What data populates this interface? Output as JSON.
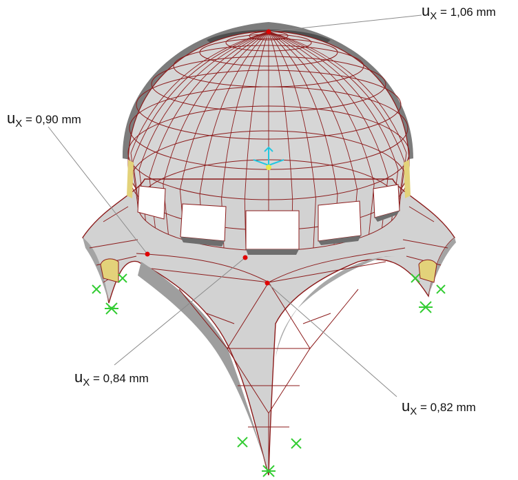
{
  "annotations": [
    {
      "id": "top",
      "symbol": "u",
      "subscript": "X",
      "value_text": " = 1,06 mm"
    },
    {
      "id": "left-rib",
      "symbol": "u",
      "subscript": "X",
      "value_text": " = 0,90 mm"
    },
    {
      "id": "center-bottom",
      "symbol": "u",
      "subscript": "X",
      "value_text": " = 0,84 mm"
    },
    {
      "id": "right-lower",
      "symbol": "u",
      "subscript": "X",
      "value_text": " = 0,82 mm"
    }
  ],
  "colors": {
    "mesh_line": "#8b1a1a",
    "shell_fill": "#d6d6d6",
    "shell_shadow": "#9e9e9e",
    "deformed_overlay": "#6e6e6e",
    "opening": "#ffffff",
    "support": "#33cc33",
    "marker": "#e00000",
    "axis": "#22c7e0",
    "edge_face": "#e3d27a",
    "leader": "#8a8a8a"
  },
  "icons": {
    "support": "fixed-support-icon",
    "axis": "coordinate-axis-icon",
    "marker": "measurement-point-marker"
  }
}
